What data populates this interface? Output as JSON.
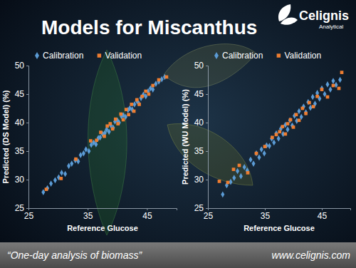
{
  "title": "Models for Miscanthus",
  "logo": {
    "name": "Celignis",
    "tagline": "Analytical"
  },
  "footer": {
    "tagline": "“One-day analysis of biomass”",
    "url": "www.celignis.com"
  },
  "chart_data": [
    {
      "type": "scatter",
      "xlabel": "Reference Glucose",
      "ylabel": "Predicted (DS Model) (%)",
      "xlim": [
        25,
        50
      ],
      "ylim": [
        25,
        50
      ],
      "xticks": [
        25,
        35,
        45
      ],
      "yticks": [
        25,
        30,
        35,
        40,
        45,
        50
      ],
      "grid": false,
      "legend": "top",
      "series": [
        {
          "name": "Calibration",
          "color": "#5b9bd5",
          "marker": "diamond",
          "x": [
            27.5,
            28.2,
            28.8,
            29.5,
            30.1,
            30.6,
            31.2,
            31.8,
            32.3,
            32.9,
            33.4,
            33.8,
            34.3,
            34.7,
            35.2,
            35.6,
            36.0,
            36.4,
            36.8,
            37.1,
            37.5,
            37.9,
            38.2,
            38.6,
            38.9,
            39.3,
            39.6,
            40.0,
            40.3,
            40.7,
            41.0,
            41.4,
            41.8,
            42.1,
            42.5,
            42.9,
            43.3,
            43.6,
            44.0,
            44.4,
            44.8,
            45.2,
            45.6,
            46.0,
            46.5,
            47.0,
            47.5,
            48.0
          ],
          "values": [
            27.8,
            28.5,
            29.3,
            29.9,
            30.4,
            31.2,
            31.0,
            32.4,
            32.8,
            33.4,
            33.2,
            34.3,
            34.6,
            35.3,
            35.0,
            36.1,
            36.5,
            36.2,
            37.3,
            37.4,
            38.0,
            38.2,
            38.8,
            38.4,
            39.5,
            39.1,
            40.2,
            40.4,
            40.0,
            41.1,
            41.3,
            41.0,
            42.2,
            42.5,
            42.3,
            43.2,
            43.8,
            43.4,
            44.3,
            44.9,
            44.6,
            45.5,
            46.0,
            45.8,
            46.8,
            47.2,
            47.6,
            48.0
          ]
        },
        {
          "name": "Validation",
          "color": "#ed7d31",
          "marker": "square",
          "x": [
            28.0,
            30.5,
            33.0,
            35.5,
            36.5,
            37.2,
            37.8,
            38.3,
            38.8,
            39.2,
            39.7,
            40.1,
            40.6,
            41.0,
            41.5,
            41.9,
            42.4,
            42.8,
            43.3,
            43.7,
            44.2,
            44.8,
            45.3,
            46.0,
            47.0,
            48.3
          ],
          "values": [
            28.3,
            30.2,
            33.6,
            36.8,
            36.9,
            38.3,
            37.6,
            39.4,
            39.8,
            38.9,
            40.6,
            39.8,
            41.5,
            40.5,
            42.3,
            41.4,
            43.2,
            42.0,
            44.0,
            43.2,
            44.6,
            45.5,
            45.0,
            46.5,
            47.5,
            48.0
          ]
        }
      ]
    },
    {
      "type": "scatter",
      "xlabel": "Reference Glucose",
      "ylabel": "Predicted (WU Model) (%)",
      "xlim": [
        25,
        50
      ],
      "ylim": [
        25,
        50
      ],
      "xticks": [
        25,
        35,
        45
      ],
      "yticks": [
        25,
        30,
        35,
        40,
        45,
        50
      ],
      "grid": false,
      "legend": "top",
      "series": [
        {
          "name": "Calibration",
          "color": "#5b9bd5",
          "marker": "diamond",
          "x": [
            27.6,
            28.3,
            29.0,
            29.6,
            30.2,
            30.8,
            31.4,
            31.9,
            32.5,
            33.0,
            33.5,
            34.0,
            34.4,
            34.9,
            35.3,
            35.8,
            36.2,
            36.6,
            37.0,
            37.4,
            37.8,
            38.2,
            38.6,
            39.0,
            39.4,
            39.8,
            40.2,
            40.6,
            41.0,
            41.4,
            41.8,
            42.2,
            42.6,
            43.0,
            43.4,
            43.8,
            44.2,
            44.6,
            45.0,
            45.5,
            46.0,
            46.5,
            47.0,
            47.5,
            48.2
          ],
          "values": [
            27.4,
            29.0,
            29.6,
            30.3,
            31.5,
            30.6,
            32.2,
            31.6,
            33.5,
            32.8,
            34.6,
            33.9,
            35.3,
            34.6,
            36.0,
            35.9,
            37.2,
            36.5,
            38.1,
            37.2,
            38.9,
            38.0,
            39.6,
            38.8,
            40.4,
            39.5,
            41.2,
            40.3,
            42.0,
            41.0,
            42.8,
            41.8,
            43.6,
            42.6,
            44.5,
            43.3,
            45.2,
            44.2,
            46.0,
            45.0,
            46.7,
            45.8,
            47.3,
            46.6,
            47.5
          ]
        },
        {
          "name": "Validation",
          "color": "#ed7d31",
          "marker": "square",
          "x": [
            27.0,
            28.5,
            29.5,
            30.5,
            32.0,
            33.5,
            35.0,
            36.3,
            37.0,
            37.6,
            38.1,
            38.6,
            39.0,
            39.5,
            40.0,
            40.5,
            41.0,
            41.6,
            42.2,
            42.8,
            43.5,
            44.2,
            45.0,
            46.0,
            47.0,
            48.0,
            48.5
          ],
          "values": [
            29.7,
            29.5,
            31.8,
            32.5,
            31.2,
            34.6,
            35.8,
            37.4,
            37.9,
            38.4,
            39.3,
            38.0,
            39.8,
            40.5,
            39.2,
            41.4,
            40.4,
            42.5,
            41.6,
            43.5,
            42.8,
            44.6,
            45.8,
            44.5,
            46.5,
            46.0,
            48.8
          ]
        }
      ]
    }
  ]
}
